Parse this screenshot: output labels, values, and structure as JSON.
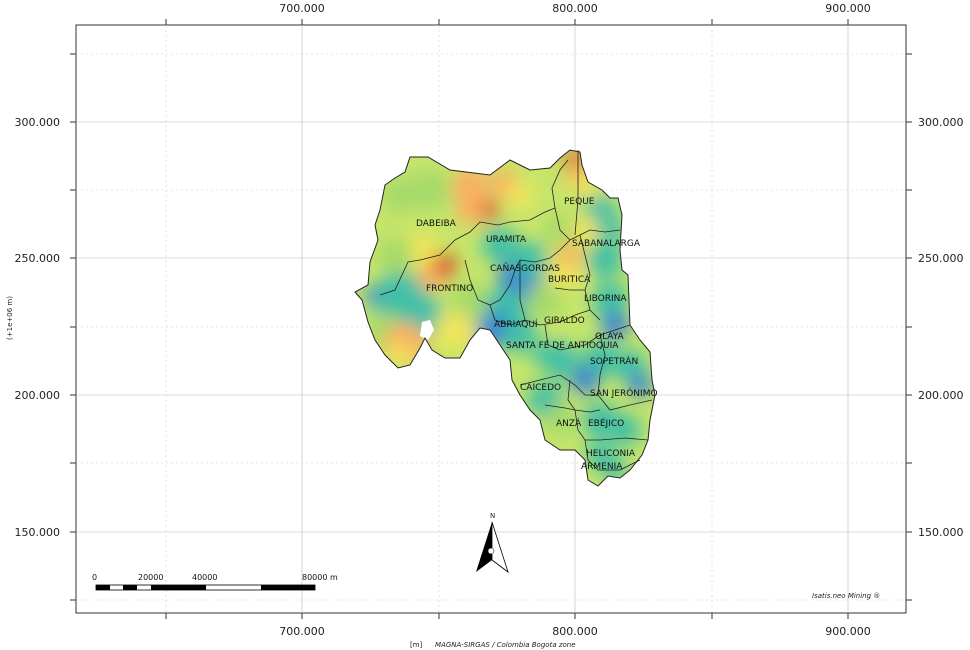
{
  "axes": {
    "x_ticks": [
      "700.000",
      "800.000",
      "900.000"
    ],
    "y_ticks": [
      "300.000",
      "250.000",
      "200.000",
      "150.000"
    ],
    "y_axis_label": "(+1e+06 m)",
    "x_unit": "[m]",
    "projection": "MAGNA-SIRGAS / Colombia Bogota zone"
  },
  "municipalities": [
    "PEQUE",
    "DABEIBA",
    "URAMITA",
    "SABANALARGA",
    "CAÑASGORDAS",
    "BURITICÁ",
    "FRONTINO",
    "LIBORINA",
    "ABRIAQUÍ",
    "GIRALDO",
    "OLAYA",
    "SANTA FÉ DE ANTIOQUIA",
    "SOPETRÁN",
    "CAICEDO",
    "SAN JERÓNIMO",
    "ANZÁ",
    "EBÉJICO",
    "HELICONIA",
    "ARMENIA"
  ],
  "north_label": "N",
  "scale_bar": {
    "labels": [
      "0",
      "20000",
      "40000",
      "80000 m"
    ]
  },
  "watermark": "Isatis.neo Mining ®",
  "colors": {
    "high": "#d7301f",
    "mid_high": "#fdae61",
    "mid": "#f1e55a",
    "mid_low": "#a6d96a",
    "low": "#3fbfa8",
    "lowest": "#3a7fd5"
  }
}
